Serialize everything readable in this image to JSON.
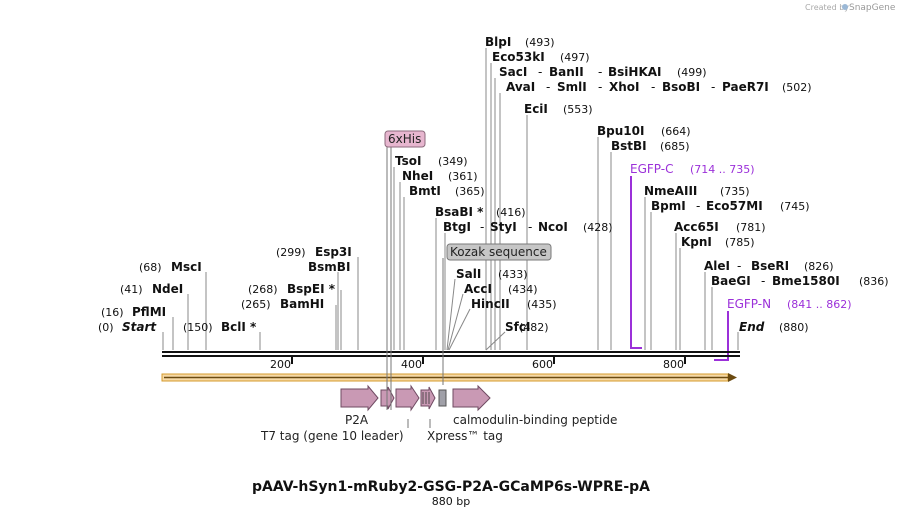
{
  "credit": {
    "created_by": "Created by",
    "brand": "SnapGene"
  },
  "title": "pAAV-hSyn1-mRuby2-GSG-P2A-GCaMP6s-WPRE-pA",
  "length_label": "880 bp",
  "ticks": [
    "200",
    "400",
    "600",
    "800"
  ],
  "ends": {
    "start": "Start",
    "start_pos": "(0)",
    "end": "End",
    "end_pos": "(880)"
  },
  "sites": [
    {
      "pos": "(493)",
      "names": [
        "BlpI"
      ]
    },
    {
      "pos": "(497)",
      "names": [
        "Eco53kI"
      ]
    },
    {
      "pos": "(499)",
      "names": [
        "SacI",
        "BanII",
        "BsiHKAI"
      ]
    },
    {
      "pos": "(502)",
      "names": [
        "AvaI",
        "SmlI",
        "XhoI",
        "BsoBI",
        "PaeR7I"
      ]
    },
    {
      "pos": "(553)",
      "names": [
        "EciI"
      ]
    },
    {
      "pos": "(664)",
      "names": [
        "Bpu10I"
      ]
    },
    {
      "pos": "(685)",
      "names": [
        "BstBI"
      ]
    },
    {
      "pos": "(349)",
      "names": [
        "TsoI"
      ]
    },
    {
      "pos": "(361)",
      "names": [
        "NheI"
      ]
    },
    {
      "pos": "(365)",
      "names": [
        "BmtI"
      ]
    },
    {
      "pos": "(416)",
      "names": [
        "BsaBI *"
      ]
    },
    {
      "pos": "(428)",
      "names": [
        "BtgI",
        "StyI",
        "NcoI"
      ]
    },
    {
      "pos": "(735)",
      "names": [
        "NmeAIII"
      ]
    },
    {
      "pos": "(745)",
      "names": [
        "BpmI",
        "Eco57MI"
      ]
    },
    {
      "pos": "(781)",
      "names": [
        "Acc65I"
      ]
    },
    {
      "pos": "(785)",
      "names": [
        "KpnI"
      ]
    },
    {
      "pos": "(826)",
      "names": [
        "AleI",
        "BseRI"
      ]
    },
    {
      "pos": "(836)",
      "names": [
        "BaeGI",
        "Bme1580I"
      ]
    },
    {
      "pos": "(299)",
      "names": [
        "Esp3I"
      ]
    },
    {
      "pos": "",
      "names": [
        "BsmBI"
      ]
    },
    {
      "pos": "(68)",
      "names": [
        "MscI"
      ]
    },
    {
      "pos": "(41)",
      "names": [
        "NdeI"
      ]
    },
    {
      "pos": "(16)",
      "names": [
        "PflMI"
      ]
    },
    {
      "pos": "(150)",
      "names": [
        "BclI *"
      ]
    },
    {
      "pos": "(268)",
      "names": [
        "BspEI *"
      ]
    },
    {
      "pos": "(265)",
      "names": [
        "BamHI"
      ]
    },
    {
      "pos": "(433)",
      "names": [
        "SalI"
      ]
    },
    {
      "pos": "(434)",
      "names": [
        "AccI"
      ]
    },
    {
      "pos": "(435)",
      "names": [
        "HincII"
      ]
    },
    {
      "pos": "(482)",
      "names": [
        "SfcI"
      ]
    }
  ],
  "primers": [
    {
      "name": "EGFP-C",
      "range": "(714 .. 735)"
    },
    {
      "name": "EGFP-N",
      "range": "(841 .. 862)"
    }
  ],
  "boxed_features": [
    {
      "name": "6xHis"
    },
    {
      "name": "Kozak sequence"
    }
  ],
  "features": [
    {
      "name": "P2A"
    },
    {
      "name": "calmodulin-binding peptide"
    },
    {
      "name": "T7 tag (gene 10 leader)"
    },
    {
      "name": "Xpress™ tag"
    }
  ],
  "colors": {
    "feature": "#c999b4",
    "orf": "#e8a83c",
    "primer": "#9b30d9",
    "box_pink": "#e7b6cf",
    "box_gray": "#bdbdbd"
  }
}
